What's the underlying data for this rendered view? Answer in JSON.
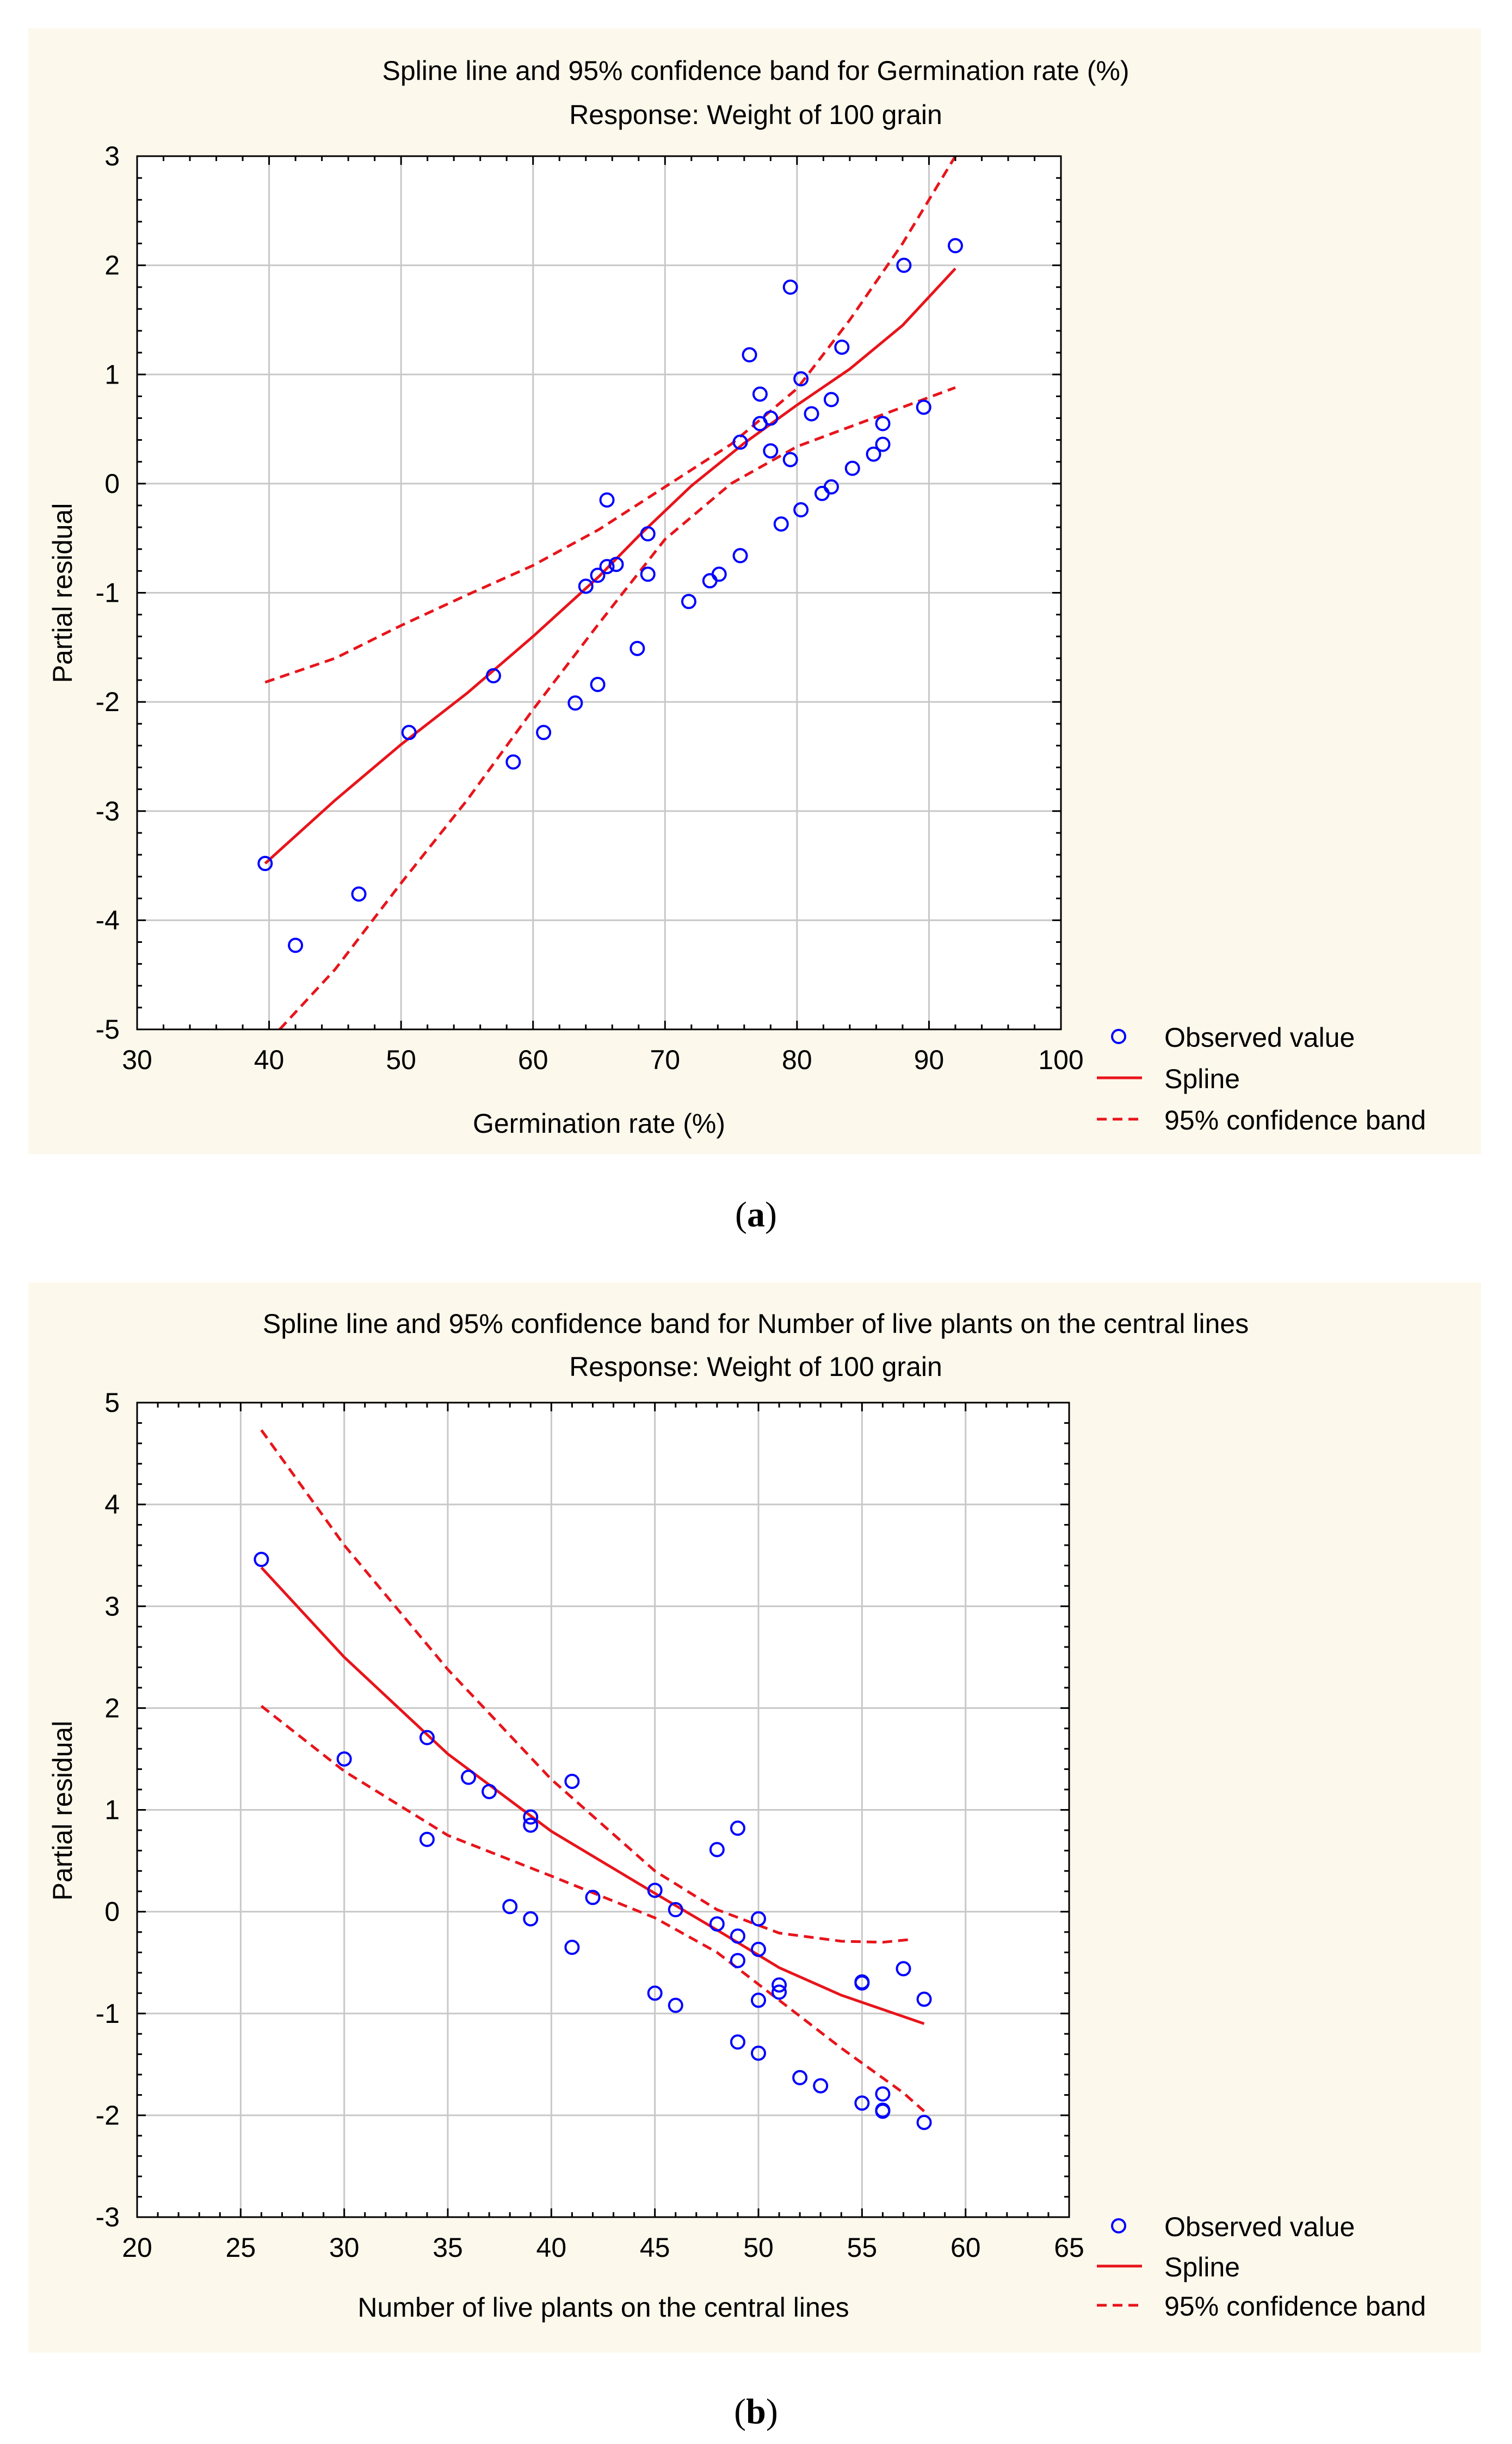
{
  "colors": {
    "panel_bg": "#FCF8EC",
    "plot_bg": "#FFFFFF",
    "grid": "#C8C8C8",
    "observed": "#0000FF",
    "spline": "#E8141B",
    "band": "#E8141B",
    "text": "#000000"
  },
  "captions": [
    {
      "open": "(",
      "letter": "a",
      "close": ")"
    },
    {
      "open": "(",
      "letter": "b",
      "close": ")"
    }
  ],
  "chart_data": [
    {
      "type": "scatter",
      "title": "Spline line and 95% confidence band for Germination rate (%)",
      "subtitle": "Response: Weight of 100 grain",
      "xlabel": "Germination rate (%)",
      "ylabel": "Partial residual",
      "xlim": [
        30,
        100
      ],
      "ylim": [
        -5,
        3
      ],
      "xticks": [
        30,
        40,
        50,
        60,
        70,
        80,
        90,
        100
      ],
      "yticks": [
        -5,
        -4,
        -3,
        -2,
        -1,
        0,
        1,
        2,
        3
      ],
      "grid": true,
      "legend": {
        "position": "bottom-right",
        "entries": [
          "Observed value",
          "Spline",
          "95% confidence band"
        ]
      },
      "observed": [
        [
          39.7,
          -3.48
        ],
        [
          42,
          -4.23
        ],
        [
          46.8,
          -3.76
        ],
        [
          50.6,
          -2.28
        ],
        [
          57,
          -1.76
        ],
        [
          58.5,
          -2.55
        ],
        [
          60.8,
          -2.28
        ],
        [
          63.2,
          -2.01
        ],
        [
          64,
          -0.94
        ],
        [
          64.9,
          -0.84
        ],
        [
          64.9,
          -1.84
        ],
        [
          65.6,
          -0.76
        ],
        [
          65.6,
          -0.15
        ],
        [
          66.3,
          -0.74
        ],
        [
          67.9,
          -1.51
        ],
        [
          68.7,
          -0.46
        ],
        [
          68.7,
          -0.83
        ],
        [
          71.8,
          -1.08
        ],
        [
          73.4,
          -0.89
        ],
        [
          74.1,
          -0.83
        ],
        [
          75.7,
          -0.66
        ],
        [
          75.7,
          0.38
        ],
        [
          76.4,
          1.18
        ],
        [
          77.2,
          0.55
        ],
        [
          77.2,
          0.82
        ],
        [
          78,
          0.6
        ],
        [
          78,
          0.3
        ],
        [
          78.8,
          -0.37
        ],
        [
          79.5,
          1.8
        ],
        [
          79.5,
          0.22
        ],
        [
          80.3,
          -0.24
        ],
        [
          80.3,
          0.96
        ],
        [
          81.1,
          0.64
        ],
        [
          81.9,
          -0.09
        ],
        [
          82.6,
          -0.03
        ],
        [
          82.6,
          0.77
        ],
        [
          83.4,
          1.25
        ],
        [
          84.2,
          0.14
        ],
        [
          85.8,
          0.27
        ],
        [
          86.5,
          0.55
        ],
        [
          86.5,
          0.36
        ],
        [
          88.1,
          2
        ],
        [
          89.6,
          0.7
        ],
        [
          92,
          2.18
        ]
      ],
      "spline": [
        [
          39.7,
          -3.48
        ],
        [
          45,
          -2.9
        ],
        [
          50,
          -2.39
        ],
        [
          55,
          -1.92
        ],
        [
          60,
          -1.4
        ],
        [
          65,
          -0.85
        ],
        [
          68,
          -0.48
        ],
        [
          72,
          -0.02
        ],
        [
          76,
          0.37
        ],
        [
          80,
          0.72
        ],
        [
          84,
          1.05
        ],
        [
          88,
          1.45
        ],
        [
          92,
          1.97
        ]
      ],
      "band_upper": [
        [
          39.7,
          -1.82
        ],
        [
          45,
          -1.6
        ],
        [
          50,
          -1.3
        ],
        [
          55,
          -1.02
        ],
        [
          60,
          -0.75
        ],
        [
          65,
          -0.42
        ],
        [
          70,
          -0.03
        ],
        [
          75,
          0.36
        ],
        [
          80,
          0.87
        ],
        [
          84,
          1.5
        ],
        [
          88,
          2.2
        ],
        [
          92,
          3
        ]
      ],
      "band_lower": [
        [
          40.8,
          -5
        ],
        [
          45,
          -4.45
        ],
        [
          50,
          -3.66
        ],
        [
          55,
          -2.9
        ],
        [
          60,
          -2.07
        ],
        [
          65,
          -1.28
        ],
        [
          70,
          -0.51
        ],
        [
          75,
          0
        ],
        [
          80,
          0.34
        ],
        [
          84,
          0.52
        ],
        [
          88,
          0.7
        ],
        [
          92,
          0.88
        ]
      ]
    },
    {
      "type": "scatter",
      "title": "Spline line and 95% confidence band for Number of live plants on the central lines",
      "subtitle": "Response: Weight of 100 grain",
      "xlabel": "Number of live plants on the central lines",
      "ylabel": "Partial residual",
      "xlim": [
        20,
        65
      ],
      "ylim": [
        -3,
        5
      ],
      "xticks": [
        20,
        25,
        30,
        35,
        40,
        45,
        50,
        55,
        60,
        65
      ],
      "yticks": [
        -3,
        -2,
        -1,
        0,
        1,
        2,
        3,
        4,
        5
      ],
      "grid": true,
      "legend": {
        "position": "bottom-right",
        "entries": [
          "Observed value",
          "Spline",
          "95% confidence band"
        ]
      },
      "observed": [
        [
          26,
          3.46
        ],
        [
          30,
          1.5
        ],
        [
          34,
          1.71
        ],
        [
          34,
          0.71
        ],
        [
          36,
          1.32
        ],
        [
          37,
          1.18
        ],
        [
          38,
          0.05
        ],
        [
          39,
          0.93
        ],
        [
          39,
          0.85
        ],
        [
          39,
          -0.07
        ],
        [
          41,
          1.28
        ],
        [
          41,
          -0.35
        ],
        [
          42,
          0.14
        ],
        [
          45,
          0.21
        ],
        [
          45,
          -0.8
        ],
        [
          46,
          0.02
        ],
        [
          46,
          -0.92
        ],
        [
          48,
          0.61
        ],
        [
          48,
          -0.12
        ],
        [
          49,
          0.82
        ],
        [
          49,
          -0.24
        ],
        [
          49,
          -0.48
        ],
        [
          49,
          -1.28
        ],
        [
          50,
          -0.07
        ],
        [
          50,
          -0.37
        ],
        [
          50,
          -0.87
        ],
        [
          50,
          -1.39
        ],
        [
          51,
          -0.72
        ],
        [
          51,
          -0.79
        ],
        [
          52,
          -1.63
        ],
        [
          53,
          -1.71
        ],
        [
          55,
          -0.7
        ],
        [
          55,
          -0.69
        ],
        [
          55,
          -1.88
        ],
        [
          56,
          -1.79
        ],
        [
          56,
          -1.95
        ],
        [
          56,
          -1.96
        ],
        [
          57,
          -0.56
        ],
        [
          58,
          -0.86
        ],
        [
          58,
          -2.07
        ]
      ],
      "spline": [
        [
          26,
          3.38
        ],
        [
          30,
          2.5
        ],
        [
          35,
          1.55
        ],
        [
          40,
          0.79
        ],
        [
          45,
          0.18
        ],
        [
          48,
          -0.18
        ],
        [
          51,
          -0.55
        ],
        [
          54,
          -0.82
        ],
        [
          58,
          -1.1
        ]
      ],
      "band_upper": [
        [
          26,
          4.73
        ],
        [
          30,
          3.6
        ],
        [
          35,
          2.38
        ],
        [
          40,
          1.3
        ],
        [
          45,
          0.4
        ],
        [
          48,
          0.02
        ],
        [
          51,
          -0.21
        ],
        [
          54,
          -0.29
        ],
        [
          56,
          -0.3
        ],
        [
          57.5,
          -0.27
        ]
      ],
      "band_lower": [
        [
          26,
          2.02
        ],
        [
          30,
          1.38
        ],
        [
          35,
          0.75
        ],
        [
          40,
          0.35
        ],
        [
          45,
          -0.06
        ],
        [
          48,
          -0.4
        ],
        [
          51,
          -0.87
        ],
        [
          54,
          -1.34
        ],
        [
          57,
          -1.78
        ],
        [
          58,
          -1.96
        ]
      ]
    }
  ]
}
